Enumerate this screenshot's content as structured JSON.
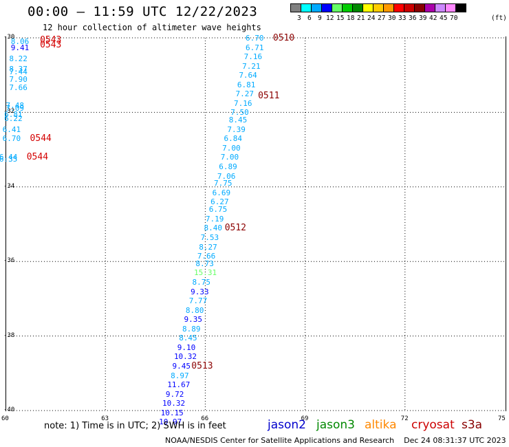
{
  "header": {
    "title": "00:00 – 11:59 UTC 12/22/2023",
    "subtitle": "12 hour collection of altimeter wave heights"
  },
  "colorbar": {
    "colors": [
      "#808080",
      "#00ffff",
      "#00aaff",
      "#0000ff",
      "#66ff66",
      "#00cc00",
      "#008800",
      "#ffff00",
      "#ffcc00",
      "#ff9900",
      "#ff0000",
      "#cc0000",
      "#880000",
      "#aa00aa",
      "#cc88ff",
      "#ff88ff",
      "#000000"
    ],
    "labels": [
      "3",
      "6",
      "9",
      "12",
      "15",
      "18",
      "21",
      "24",
      "27",
      "30",
      "33",
      "36",
      "39",
      "42",
      "45",
      "70"
    ],
    "unit": "(ft)"
  },
  "axes": {
    "y_ticks": [
      "-30",
      "-32",
      "-34",
      "-36",
      "-38",
      "-40"
    ],
    "x_ticks": [
      "60",
      "63",
      "66",
      "69",
      "72",
      "75"
    ]
  },
  "chart_data": {
    "type": "scatter",
    "xlim": [
      60,
      75
    ],
    "ylim": [
      -40,
      -30
    ],
    "grid": true,
    "points": [
      {
        "lon": 60.45,
        "lat": -30.1,
        "v": "8.06",
        "c": "#00aaff"
      },
      {
        "lon": 60.45,
        "lat": -30.25,
        "v": "9.41",
        "c": "#0000ff"
      },
      {
        "lon": 60.4,
        "lat": -30.55,
        "v": "8.22",
        "c": "#00aaff"
      },
      {
        "lon": 60.4,
        "lat": -30.83,
        "v": "8.37",
        "c": "#00aaff"
      },
      {
        "lon": 60.4,
        "lat": -30.9,
        "v": "7.44",
        "c": "#00aaff"
      },
      {
        "lon": 60.4,
        "lat": -31.1,
        "v": "7.90",
        "c": "#00aaff"
      },
      {
        "lon": 60.4,
        "lat": -31.32,
        "v": "7.66",
        "c": "#00aaff"
      },
      {
        "lon": 60.3,
        "lat": -31.8,
        "v": "7.48",
        "c": "#00aaff"
      },
      {
        "lon": 60.3,
        "lat": -31.88,
        "v": "7.09",
        "c": "#00aaff"
      },
      {
        "lon": 60.25,
        "lat": -32.05,
        "v": "6.81",
        "c": "#00aaff"
      },
      {
        "lon": 60.25,
        "lat": -32.15,
        "v": "6.22",
        "c": "#00aaff"
      },
      {
        "lon": 60.2,
        "lat": -32.45,
        "v": "6.41",
        "c": "#00aaff"
      },
      {
        "lon": 60.2,
        "lat": -32.7,
        "v": "6.70",
        "c": "#00aaff"
      },
      {
        "lon": 60.1,
        "lat": -33.2,
        "v": "6.44",
        "c": "#00aaff"
      },
      {
        "lon": 60.1,
        "lat": -33.25,
        "v": "6.35",
        "c": "#00aaff"
      },
      {
        "lon": 67.5,
        "lat": -30.0,
        "v": "6.70",
        "c": "#00aaff"
      },
      {
        "lon": 67.5,
        "lat": -30.25,
        "v": "6.71",
        "c": "#00aaff"
      },
      {
        "lon": 67.45,
        "lat": -30.5,
        "v": "7.16",
        "c": "#00aaff"
      },
      {
        "lon": 67.4,
        "lat": -30.75,
        "v": "7.21",
        "c": "#00aaff"
      },
      {
        "lon": 67.3,
        "lat": -31.0,
        "v": "7.64",
        "c": "#00aaff"
      },
      {
        "lon": 67.25,
        "lat": -31.25,
        "v": "6.81",
        "c": "#00aaff"
      },
      {
        "lon": 67.2,
        "lat": -31.5,
        "v": "7.27",
        "c": "#00aaff"
      },
      {
        "lon": 67.15,
        "lat": -31.75,
        "v": "7.16",
        "c": "#00aaff"
      },
      {
        "lon": 67.05,
        "lat": -32.0,
        "v": "7.50",
        "c": "#00aaff"
      },
      {
        "lon": 67.0,
        "lat": -32.2,
        "v": "8.45",
        "c": "#00aaff"
      },
      {
        "lon": 66.95,
        "lat": -32.45,
        "v": "7.39",
        "c": "#00aaff"
      },
      {
        "lon": 66.85,
        "lat": -32.7,
        "v": "6.84",
        "c": "#00aaff"
      },
      {
        "lon": 66.8,
        "lat": -32.95,
        "v": "7.00",
        "c": "#00aaff"
      },
      {
        "lon": 66.75,
        "lat": -33.2,
        "v": "7.00",
        "c": "#00aaff"
      },
      {
        "lon": 66.7,
        "lat": -33.45,
        "v": "6.89",
        "c": "#00aaff"
      },
      {
        "lon": 66.65,
        "lat": -33.7,
        "v": "7.06",
        "c": "#00aaff"
      },
      {
        "lon": 66.55,
        "lat": -33.9,
        "v": "7.75",
        "c": "#00aaff"
      },
      {
        "lon": 66.5,
        "lat": -34.15,
        "v": "6.69",
        "c": "#00aaff"
      },
      {
        "lon": 66.45,
        "lat": -34.4,
        "v": "6.27",
        "c": "#00aaff"
      },
      {
        "lon": 66.4,
        "lat": -34.6,
        "v": "6.75",
        "c": "#00aaff"
      },
      {
        "lon": 66.3,
        "lat": -34.85,
        "v": "7.19",
        "c": "#00aaff"
      },
      {
        "lon": 66.25,
        "lat": -35.1,
        "v": "8.40",
        "c": "#00aaff"
      },
      {
        "lon": 66.15,
        "lat": -35.35,
        "v": "7.53",
        "c": "#00aaff"
      },
      {
        "lon": 66.1,
        "lat": -35.6,
        "v": "8.27",
        "c": "#00aaff"
      },
      {
        "lon": 66.05,
        "lat": -35.85,
        "v": "7.66",
        "c": "#00aaff"
      },
      {
        "lon": 66.0,
        "lat": -36.05,
        "v": "8.73",
        "c": "#00aaff"
      },
      {
        "lon": 65.95,
        "lat": -36.3,
        "v": "15.31",
        "c": "#66ff66"
      },
      {
        "lon": 65.9,
        "lat": -36.55,
        "v": "8.75",
        "c": "#00aaff"
      },
      {
        "lon": 65.85,
        "lat": -36.8,
        "v": "9.33",
        "c": "#0000ff"
      },
      {
        "lon": 65.8,
        "lat": -37.05,
        "v": "7.77",
        "c": "#00aaff"
      },
      {
        "lon": 65.7,
        "lat": -37.3,
        "v": "8.80",
        "c": "#00aaff"
      },
      {
        "lon": 65.65,
        "lat": -37.55,
        "v": "9.35",
        "c": "#0000ff"
      },
      {
        "lon": 65.6,
        "lat": -37.8,
        "v": "8.89",
        "c": "#00aaff"
      },
      {
        "lon": 65.5,
        "lat": -38.05,
        "v": "8.45",
        "c": "#00aaff"
      },
      {
        "lon": 65.45,
        "lat": -38.3,
        "v": "9.10",
        "c": "#0000ff"
      },
      {
        "lon": 65.35,
        "lat": -38.55,
        "v": "10.32",
        "c": "#0000ff"
      },
      {
        "lon": 65.3,
        "lat": -38.8,
        "v": "9.45",
        "c": "#0000ff"
      },
      {
        "lon": 65.25,
        "lat": -39.05,
        "v": "8.97",
        "c": "#00aaff"
      },
      {
        "lon": 65.15,
        "lat": -39.3,
        "v": "11.67",
        "c": "#0000ff"
      },
      {
        "lon": 65.1,
        "lat": -39.55,
        "v": "9.72",
        "c": "#0000ff"
      },
      {
        "lon": 65.0,
        "lat": -39.8,
        "v": "10.32",
        "c": "#0000ff"
      },
      {
        "lon": 64.95,
        "lat": -40.05,
        "v": "10.15",
        "c": "#0000ff"
      },
      {
        "lon": 64.9,
        "lat": -40.3,
        "v": "10.97",
        "c": "#0000ff"
      }
    ],
    "revs": [
      {
        "lon": 61.2,
        "lat": -30.05,
        "label": "0543",
        "c": "#d40000"
      },
      {
        "lon": 61.2,
        "lat": -30.18,
        "label": "0543",
        "c": "#d40000"
      },
      {
        "lon": 60.9,
        "lat": -32.7,
        "label": "0544",
        "c": "#d40000"
      },
      {
        "lon": 60.8,
        "lat": -33.2,
        "label": "0544",
        "c": "#d40000"
      },
      {
        "lon": 68.2,
        "lat": -30.0,
        "label": "0510",
        "c": "#8b0000"
      },
      {
        "lon": 67.75,
        "lat": -31.55,
        "label": "0511",
        "c": "#8b0000"
      },
      {
        "lon": 66.75,
        "lat": -35.1,
        "label": "0512",
        "c": "#8b0000"
      },
      {
        "lon": 65.75,
        "lat": -38.8,
        "label": "0513",
        "c": "#8b0000"
      }
    ]
  },
  "footer": {
    "note": "note: 1) Time is in UTC; 2) SWH is in feet",
    "credit": "NOAA/NESDIS Center for Satellite Applications and Research    Dec 24 08:31:37 UTC 2023",
    "legend": [
      {
        "label": "jason2",
        "color": "#0000cc"
      },
      {
        "label": "jason3",
        "color": "#008800"
      },
      {
        "label": "altika",
        "color": "#ff8800"
      },
      {
        "label": "cryosat",
        "color": "#cc0000"
      },
      {
        "label": "s3a",
        "color": "#880000"
      }
    ]
  }
}
